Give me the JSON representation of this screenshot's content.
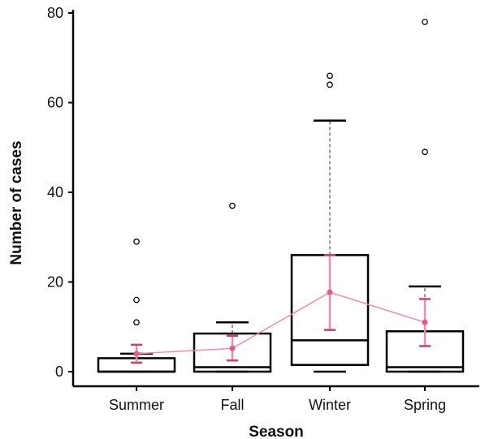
{
  "chart_data": {
    "type": "box",
    "title": "",
    "xlabel": "Season",
    "ylabel": "Number of cases",
    "ylim": [
      -3,
      81
    ],
    "yticks": [
      0,
      20,
      40,
      60,
      80
    ],
    "categories": [
      "Summer",
      "Fall",
      "Winter",
      "Spring"
    ],
    "boxes": [
      {
        "category": "Summer",
        "q1": 0,
        "median": 0,
        "q3": 3,
        "whisker_low": 0,
        "whisker_high": 4,
        "outliers": [
          11,
          16,
          29
        ]
      },
      {
        "category": "Fall",
        "q1": 0,
        "median": 1,
        "q3": 8.5,
        "whisker_low": 0,
        "whisker_high": 11,
        "outliers": [
          37
        ]
      },
      {
        "category": "Winter",
        "q1": 1.5,
        "median": 7,
        "q3": 26,
        "whisker_low": 0,
        "whisker_high": 56,
        "outliers": [
          64,
          66
        ]
      },
      {
        "category": "Spring",
        "q1": 0,
        "median": 1,
        "q3": 9,
        "whisker_low": 0,
        "whisker_high": 19,
        "outliers": [
          49,
          78
        ]
      }
    ],
    "mean_series": {
      "values": [
        4,
        5.2,
        17.7,
        11
      ],
      "error_low": [
        2,
        2.5,
        9.3,
        5.7
      ],
      "error_high": [
        6,
        8,
        26,
        16.2
      ]
    },
    "colors": {
      "box": "#000000",
      "mean": "#e8578a",
      "mean_line": "#f08cb0",
      "error_bar": "#c9406f"
    },
    "grid": false,
    "legend": "none"
  }
}
